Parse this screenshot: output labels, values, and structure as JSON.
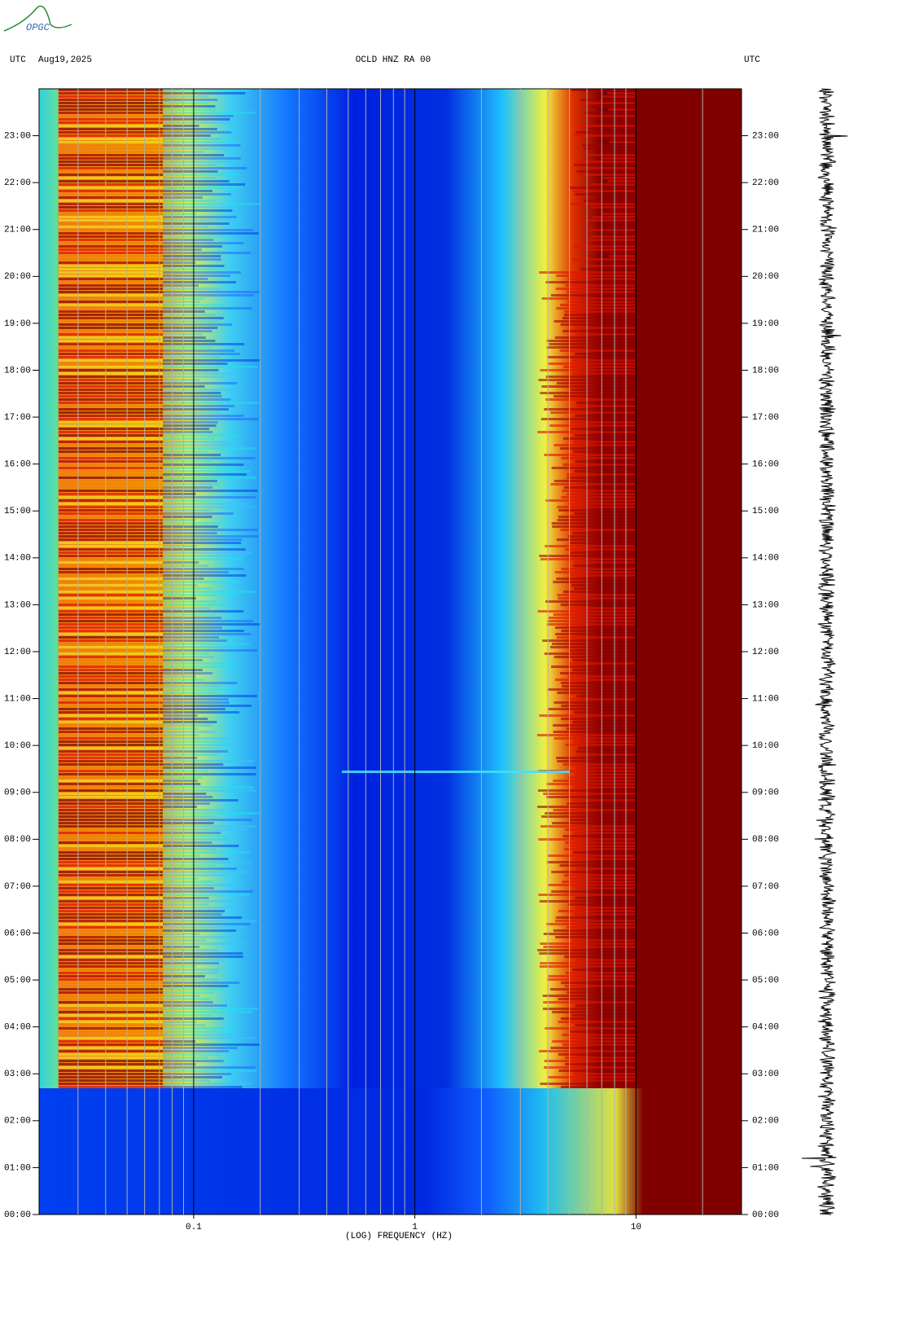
{
  "header": {
    "logo": "OPGC",
    "left_timezone": "UTC",
    "date": "Aug19,2025",
    "right_timezone": "UTC"
  },
  "chart_data": {
    "type": "spectrogram",
    "title": "OCLD HNZ RA 00",
    "xlabel": "(LOG) FREQUENCY (HZ)",
    "xscale": "log",
    "xlim": [
      0.02,
      30
    ],
    "xticks": [
      0.1,
      1,
      10
    ],
    "xminor": [
      0.03,
      0.04,
      0.05,
      0.06,
      0.07,
      0.08,
      0.09,
      0.2,
      0.3,
      0.4,
      0.5,
      0.6,
      0.7,
      0.8,
      0.9,
      2,
      3,
      4,
      5,
      6,
      7,
      8,
      9,
      20
    ],
    "ylim": [
      0,
      24
    ],
    "yticks": [
      {
        "value": 0,
        "label": "00:00"
      },
      {
        "value": 1,
        "label": "01:00"
      },
      {
        "value": 2,
        "label": "02:00"
      },
      {
        "value": 3,
        "label": "03:00"
      },
      {
        "value": 4,
        "label": "04:00"
      },
      {
        "value": 5,
        "label": "05:00"
      },
      {
        "value": 6,
        "label": "06:00"
      },
      {
        "value": 7,
        "label": "07:00"
      },
      {
        "value": 8,
        "label": "08:00"
      },
      {
        "value": 9,
        "label": "09:00"
      },
      {
        "value": 10,
        "label": "10:00"
      },
      {
        "value": 11,
        "label": "11:00"
      },
      {
        "value": 12,
        "label": "12:00"
      },
      {
        "value": 13,
        "label": "13:00"
      },
      {
        "value": 14,
        "label": "14:00"
      },
      {
        "value": 15,
        "label": "15:00"
      },
      {
        "value": 16,
        "label": "16:00"
      },
      {
        "value": 17,
        "label": "17:00"
      },
      {
        "value": 18,
        "label": "18:00"
      },
      {
        "value": 19,
        "label": "19:00"
      },
      {
        "value": 20,
        "label": "20:00"
      },
      {
        "value": 21,
        "label": "21:00"
      },
      {
        "value": 22,
        "label": "22:00"
      },
      {
        "value": 23,
        "label": "23:00"
      }
    ]
  }
}
